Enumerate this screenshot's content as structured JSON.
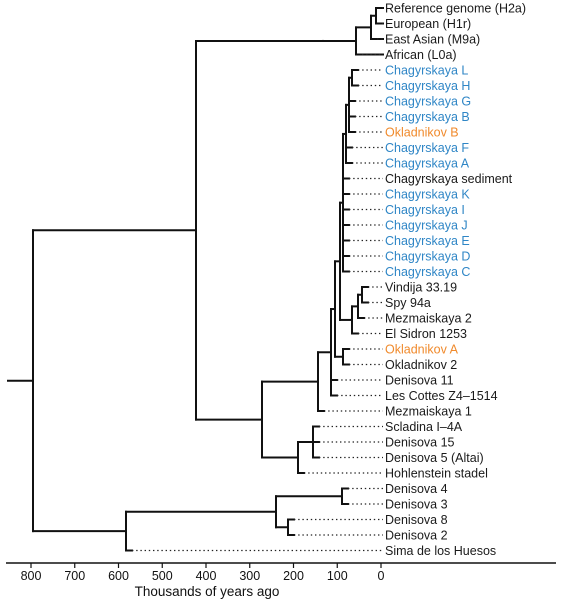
{
  "colors": {
    "default": "#1a1a1a",
    "chagyrskaya": "#2f86c6",
    "okladnikov": "#f08a2c"
  },
  "axis": {
    "title": "Thousands of years ago",
    "ticks": [
      800,
      700,
      600,
      500,
      400,
      300,
      200,
      100,
      0
    ]
  },
  "tree": {
    "leaves": [
      {
        "label": "Reference genome (H2a)",
        "group": "default"
      },
      {
        "label": "European (H1r)",
        "group": "default"
      },
      {
        "label": "East Asian (M9a)",
        "group": "default"
      },
      {
        "label": "African (L0a)",
        "group": "default"
      },
      {
        "label": "Chagyrskaya L",
        "group": "chagyrskaya"
      },
      {
        "label": "Chagyrskaya H",
        "group": "chagyrskaya"
      },
      {
        "label": "Chagyrskaya G",
        "group": "chagyrskaya"
      },
      {
        "label": "Chagyrskaya B",
        "group": "chagyrskaya"
      },
      {
        "label": "Okladnikov B",
        "group": "okladnikov"
      },
      {
        "label": "Chagyrskaya F",
        "group": "chagyrskaya"
      },
      {
        "label": "Chagyrskaya A",
        "group": "chagyrskaya"
      },
      {
        "label": "Chagyrskaya sediment",
        "group": "default"
      },
      {
        "label": "Chagyrskaya K",
        "group": "chagyrskaya"
      },
      {
        "label": "Chagyrskaya I",
        "group": "chagyrskaya"
      },
      {
        "label": "Chagyrskaya J",
        "group": "chagyrskaya"
      },
      {
        "label": "Chagyrskaya E",
        "group": "chagyrskaya"
      },
      {
        "label": "Chagyrskaya D",
        "group": "chagyrskaya"
      },
      {
        "label": "Chagyrskaya C",
        "group": "chagyrskaya"
      },
      {
        "label": "Vindija 33.19",
        "group": "default"
      },
      {
        "label": "Spy 94a",
        "group": "default"
      },
      {
        "label": "Mezmaiskaya 2",
        "group": "default"
      },
      {
        "label": "El Sidron 1253",
        "group": "default"
      },
      {
        "label": "Okladnikov A",
        "group": "okladnikov"
      },
      {
        "label": "Okladnikov 2",
        "group": "default"
      },
      {
        "label": "Denisova 11",
        "group": "default"
      },
      {
        "label": "Les Cottes Z4–1514",
        "group": "default"
      },
      {
        "label": "Mezmaiskaya 1",
        "group": "default"
      },
      {
        "label": "Scladina I–4A",
        "group": "default"
      },
      {
        "label": "Denisova 15",
        "group": "default"
      },
      {
        "label": "Denisova 5 (Altai)",
        "group": "default"
      },
      {
        "label": "Hohlenstein stadel",
        "group": "default"
      },
      {
        "label": "Denisova 4",
        "group": "default"
      },
      {
        "label": "Denisova 3",
        "group": "default"
      },
      {
        "label": "Denisova 8",
        "group": "default"
      },
      {
        "label": "Denisova 2",
        "group": "default"
      },
      {
        "label": "Sima de los Huesos",
        "group": "default"
      }
    ]
  }
}
